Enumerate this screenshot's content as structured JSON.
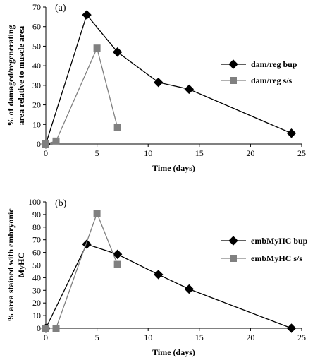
{
  "chart_data": [
    {
      "type": "line",
      "panel_label": "(a)",
      "xlabel": "Time (days)",
      "ylabel_lines": [
        "% of damaged/regenerating",
        "area relative to muscle area"
      ],
      "xlim": [
        0,
        25
      ],
      "ylim": [
        0,
        70
      ],
      "xticks": [
        0,
        5,
        10,
        15,
        20,
        25
      ],
      "yticks": [
        0,
        10,
        20,
        30,
        40,
        50,
        60,
        70
      ],
      "grid": false,
      "legend_position": "right",
      "series": [
        {
          "name": "dam/reg bup",
          "marker": "diamond",
          "color": "#000000",
          "x": [
            0,
            4,
            7,
            11,
            14,
            24
          ],
          "y": [
            0,
            66,
            47,
            31.5,
            28,
            5.5
          ]
        },
        {
          "name": "dam/reg s/s",
          "marker": "square",
          "color": "#808080",
          "x": [
            0,
            1,
            5,
            7
          ],
          "y": [
            0,
            1.5,
            49,
            8.5
          ]
        }
      ]
    },
    {
      "type": "line",
      "panel_label": "(b)",
      "xlabel": "Time (days)",
      "ylabel_lines": [
        "% area stained with embryonic",
        "MyHC"
      ],
      "xlim": [
        0,
        25
      ],
      "ylim": [
        0,
        100
      ],
      "xticks": [
        0,
        5,
        10,
        15,
        20,
        25
      ],
      "yticks": [
        0,
        10,
        20,
        30,
        40,
        50,
        60,
        70,
        80,
        90,
        100
      ],
      "grid": false,
      "legend_position": "right",
      "series": [
        {
          "name": "embMyHC bup",
          "marker": "diamond",
          "color": "#000000",
          "x": [
            0,
            4,
            7,
            11,
            14,
            24
          ],
          "y": [
            0,
            66.5,
            58.5,
            42.5,
            31,
            0
          ]
        },
        {
          "name": "embMyHC s/s",
          "marker": "square",
          "color": "#808080",
          "x": [
            0,
            1,
            5,
            7
          ],
          "y": [
            0,
            0,
            91,
            50.5
          ]
        }
      ]
    }
  ]
}
